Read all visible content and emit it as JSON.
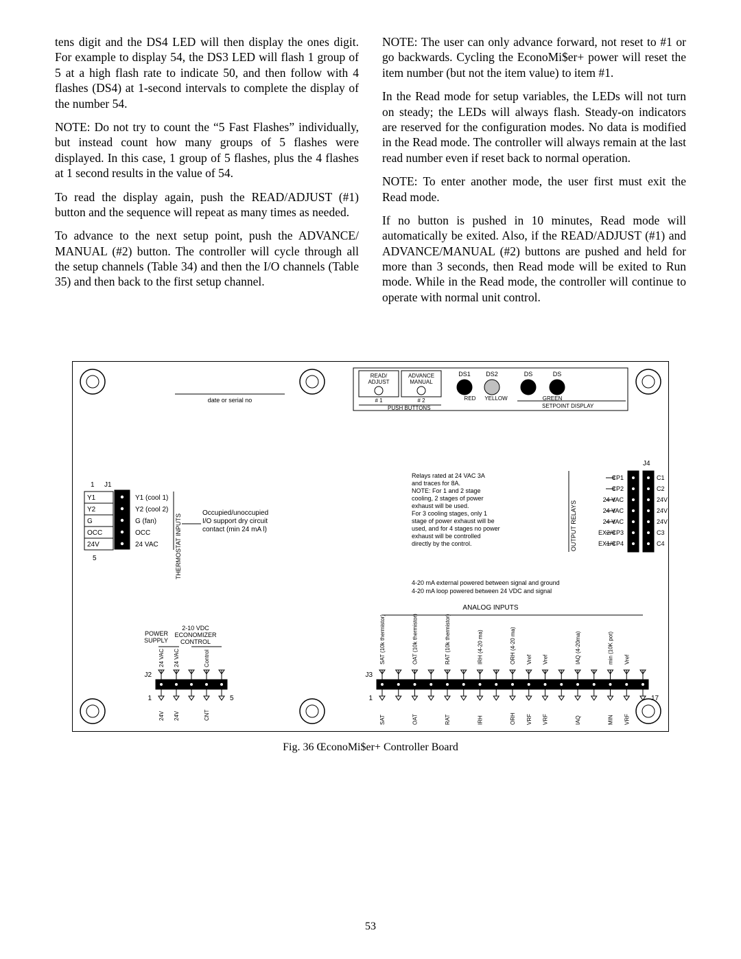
{
  "left": {
    "p1": "tens digit and the DS4 LED will then display the ones digit. For example to display 54, the DS3 LED will flash 1 group of 5 at a high flash rate to indicate 50, and then follow with 4 flashes (DS4) at 1-second intervals to complete the display of the number 54.",
    "p2": "NOTE: Do not try to count the “5 Fast Flashes” individually, but instead count how many groups of 5 flashes were displayed. In this case, 1 group of 5 flashes, plus the 4 flashes at 1 second results in the value of 54.",
    "p3": "To read the display again, push the READ/ADJUST (#1) button and the sequence will repeat as many times as needed.",
    "p4": "To advance to the next setup point, push the ADVANCE/ MANUAL (#2) button. The controller will cycle through all the setup channels (Table 34) and then the I/O channels (Table 35) and then back to the first setup channel."
  },
  "right": {
    "p1": "NOTE: The user can only advance forward, not reset to #1 or go backwards. Cycling the EconoMi$er+ power will reset the item number (but not the item value) to item #1.",
    "p2": "In the Read mode for setup variables, the LEDs will not turn on steady; the LEDs will always flash. Steady-on indicators are reserved for the configuration modes. No data is modified in the Read mode. The controller will always remain at the last read number even if reset back to normal operation.",
    "p3": "NOTE: To enter another mode, the user first must exit the Read mode.",
    "p4": "If no button is pushed in 10 minutes, Read mode will automatically be exited. Also, if the READ/ADJUST (#1) and ADVANCE/MANUAL (#2) buttons are pushed and held for more than 3 seconds, then Read mode will be exited to Run mode. While in the Read mode, the controller will continue to operate with normal unit control."
  },
  "figure": {
    "caption": "Fig. 36 ŒconoMi$er+ Controller Board",
    "date_serial": "date or serial no",
    "top": {
      "read_adjust_l1": "READ/",
      "read_adjust_l2": "ADJUST",
      "advance_l1": "ADVANCE",
      "advance_l2": "MANUAL",
      "hash1": "# 1",
      "hash2": "# 2",
      "push_buttons": "PUSH BUTTONS",
      "ds1": "DS1",
      "ds2": "DS2",
      "ds3": "DS",
      "ds4": "DS",
      "red": "RED",
      "yellow": "YELLOW",
      "green": "GREEN",
      "setpoint": "SETPOINT DISPLAY"
    },
    "j1": {
      "one": "1",
      "j1": "J1",
      "five": "5",
      "rows_left": [
        "Y1",
        "Y2",
        "G",
        "OCC",
        "24V"
      ],
      "rows_right": [
        "Y1 (cool 1)",
        "Y2 (cool 2)",
        "G (fan)",
        "OCC",
        "24 VAC"
      ],
      "group_label": "THERMOSTAT INPUTS",
      "occ_note_l1": "Occupied/unoccupied",
      "occ_note_l2": "I/O support dry circuit",
      "occ_note_l3": "contact (min 24 mA l)"
    },
    "relays": {
      "note_l1": "Relays rated at 24 VAC 3A",
      "note_l2": "and traces for 8A.",
      "note_l3": "NOTE: For 1 and 2 stage",
      "note_l4": "cooling, 2 stages of power",
      "note_l5": "exhaust will be used.",
      "note_l6": "For 3 cooling stages, only 1",
      "note_l7": "stage of power exhaust will be",
      "note_l8": "used, and for 4 stages no power",
      "note_l9": "exhaust will be controlled",
      "note_l10": "directly by the control.",
      "group_label": "OUTPUT RELAYS",
      "j4": "J4",
      "left_rows": [
        "CP1",
        "CP2",
        "24 VAC",
        "24 VAC",
        "24 VAC",
        "EX2/CP3",
        "EX1/CP4"
      ],
      "right_rows": [
        "C1",
        "C2",
        "24V",
        "24V",
        "24V",
        "C3",
        "C4"
      ]
    },
    "analog": {
      "ext_l1": "4-20 mA external powered between signal and ground",
      "ext_l2": "4-20 mA loop powered between 24 VDC and signal",
      "heading": "ANALOG INPUTS",
      "top_labels": [
        "SAT (10k thermistor)",
        "",
        "OAT (10k thermistor)",
        "",
        "RAT (10k thermistor)",
        "",
        "IRH (4-20 ma)",
        "",
        "ORH (4-20 ma)",
        "Vref",
        "Vref",
        "",
        "IAQ (4-20ma)",
        "",
        "min (10K pot)",
        "Vref",
        ""
      ],
      "bottom_labels": [
        "SAT",
        "",
        "OAT",
        "",
        "RAT",
        "",
        "IRH",
        "",
        "ORH",
        "VRF",
        "VRF",
        "",
        "IAQ",
        "",
        "MIN",
        "VRF",
        ""
      ],
      "j3": "J3",
      "one": "1",
      "seventeen": "17"
    },
    "j2": {
      "power_l1": "POWER",
      "power_l2": "SUPPLY",
      "econ_l1": "2-10 VDC",
      "econ_l2": "ECONOMIZER",
      "econ_l3": "CONTROL",
      "top_labels": [
        "24 VAC",
        "24 VAC",
        "",
        "Control",
        ""
      ],
      "bottom_labels": [
        "24V",
        "24V",
        "",
        "CNT",
        ""
      ],
      "j2": "J2",
      "one": "1",
      "five": "5"
    }
  },
  "pagenum": "53",
  "board": {
    "bg": "#ffffff",
    "border": "#000000",
    "black": "#000000",
    "grey": "#c0c0c0"
  }
}
